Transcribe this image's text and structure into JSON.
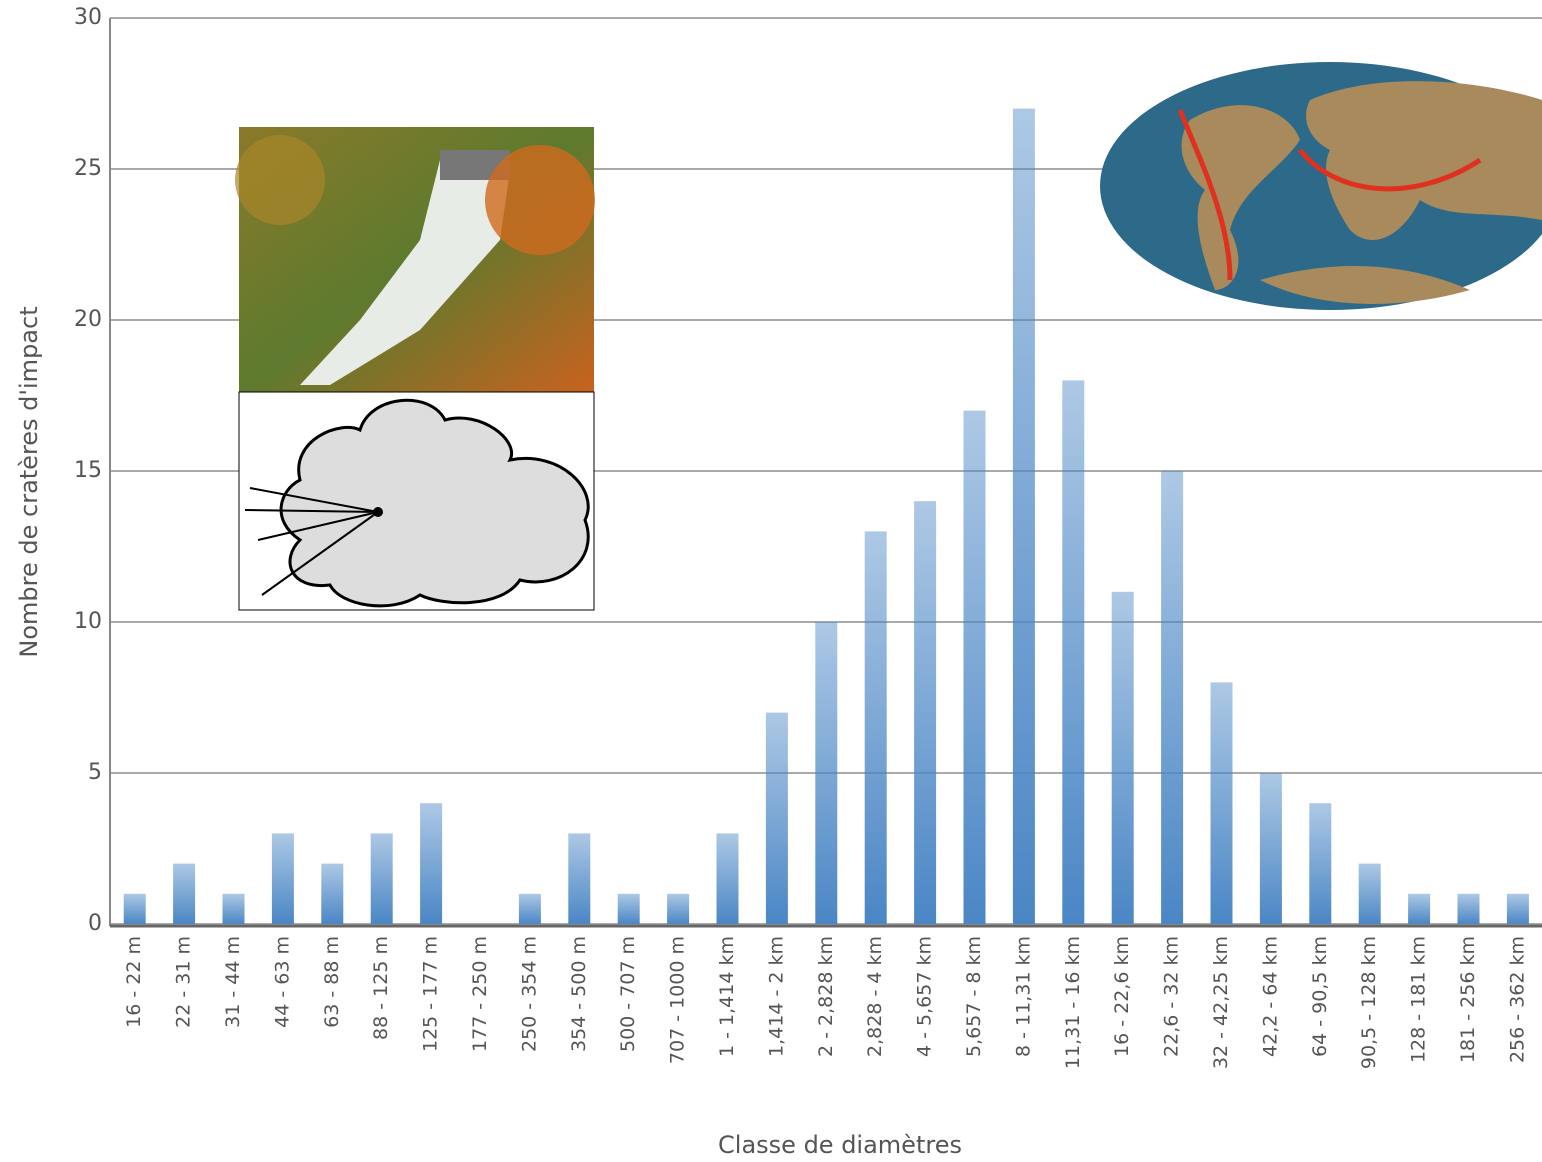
{
  "chart_data": {
    "type": "bar",
    "y_label": "Nombre de cratères d'impact",
    "x_label": "Classe de diamètres",
    "categories": [
      "16 - 22 m",
      "22 - 31 m",
      "31 - 44 m",
      "44 - 63 m",
      "63 - 88 m",
      "88 - 125 m",
      "125 - 177 m",
      "177 - 250 m",
      "250 - 354 m",
      "354 - 500 m",
      "500 - 707 m",
      "707 - 1000 m",
      "1 - 1,414 km",
      "1,414 - 2 km",
      "2 - 2,828 km",
      "2,828 - 4 km",
      "4 - 5,657 km",
      "5,657 - 8 km",
      "8 - 11,31 km",
      "11,31 - 16 km",
      "16 - 22,6 km",
      "22,6 - 32 km",
      "32 - 42,25 km",
      "42,2 - 64 km",
      "64 - 90,5 km",
      "90,5 - 128 km",
      "128 - 181 km",
      "181 - 256 km",
      "256 - 362 km"
    ],
    "values": [
      1,
      2,
      1,
      3,
      2,
      3,
      4,
      0,
      1,
      3,
      1,
      1,
      3,
      7,
      10,
      13,
      14,
      17,
      27,
      18,
      11,
      15,
      8,
      5,
      4,
      2,
      1,
      1,
      1
    ],
    "color": "#4a86c5",
    "ylim": [
      0,
      30
    ],
    "yticks": [
      0,
      5,
      10,
      15,
      20,
      25,
      30
    ],
    "grid": true
  }
}
